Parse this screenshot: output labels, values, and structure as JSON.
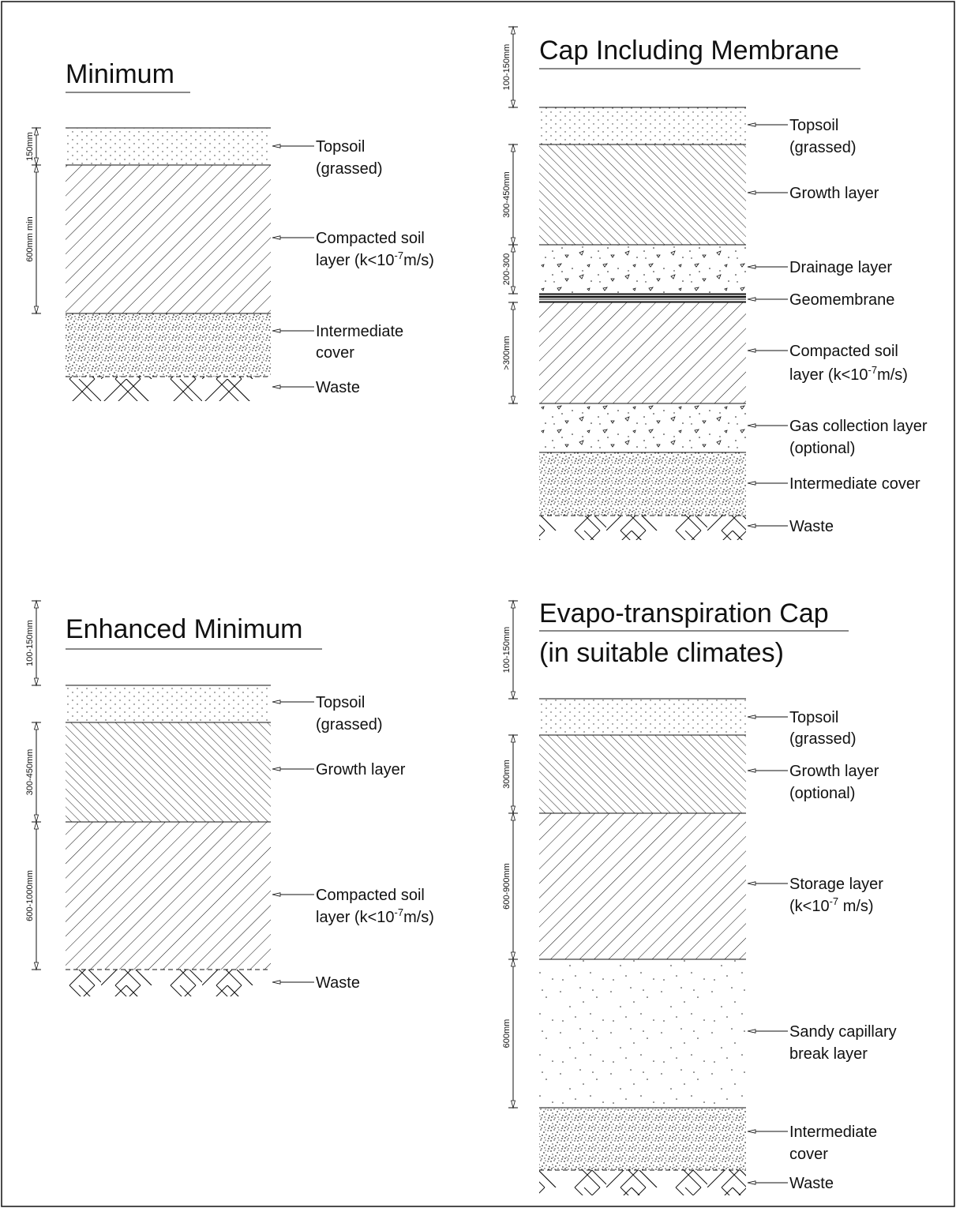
{
  "diagrams": [
    {
      "title": [
        "Minimum"
      ],
      "layers": [
        {
          "label": [
            "Topsoil",
            "(grassed)"
          ],
          "pattern": "dots-light",
          "dimension": "150mm"
        },
        {
          "label": [
            "Compacted soil",
            "layer (k<10-7m/s)"
          ],
          "pattern": "hatch-wide",
          "dimension": "600mm min"
        },
        {
          "label": [
            "Intermediate",
            "cover"
          ],
          "pattern": "stipple-dense"
        },
        {
          "label": [
            "Waste"
          ],
          "pattern": "crosshatch"
        }
      ]
    },
    {
      "title": [
        "Cap Including Membrane"
      ],
      "top_dimension": "100-150mm",
      "layers": [
        {
          "label": [
            "Topsoil",
            "(grassed)"
          ],
          "pattern": "dots-light"
        },
        {
          "label": [
            "Growth layer"
          ],
          "pattern": "hatch-fine",
          "dimension": "300-450mm"
        },
        {
          "label": [
            "Drainage layer"
          ],
          "pattern": "gravel",
          "dimension": "200-300"
        },
        {
          "label": [
            "Geomembrane"
          ],
          "pattern": "membrane"
        },
        {
          "label": [
            "Compacted soil",
            "layer (k<10-7m/s)"
          ],
          "pattern": "hatch-wide",
          "dimension": ">300mm"
        },
        {
          "label": [
            "Gas collection layer",
            "(optional)"
          ],
          "pattern": "gravel"
        },
        {
          "label": [
            "Intermediate cover"
          ],
          "pattern": "stipple-dense"
        },
        {
          "label": [
            "Waste"
          ],
          "pattern": "crosshatch"
        }
      ]
    },
    {
      "title": [
        "Enhanced Minimum"
      ],
      "top_dimension": "100-150mm",
      "layers": [
        {
          "label": [
            "Topsoil",
            "(grassed)"
          ],
          "pattern": "dots-light"
        },
        {
          "label": [
            "Growth layer"
          ],
          "pattern": "hatch-fine",
          "dimension": "300-450mm"
        },
        {
          "label": [
            "Compacted soil",
            "layer (k<10-7m/s)"
          ],
          "pattern": "hatch-wide",
          "dimension": "600-1000mm"
        },
        {
          "label": [
            "Waste"
          ],
          "pattern": "crosshatch"
        }
      ]
    },
    {
      "title": [
        "Evapo-transpiration Cap",
        "(in suitable climates)"
      ],
      "top_dimension": "100-150mm",
      "layers": [
        {
          "label": [
            "Topsoil",
            "(grassed)"
          ],
          "pattern": "dots-light"
        },
        {
          "label": [
            "Growth layer",
            "(optional)"
          ],
          "pattern": "hatch-fine",
          "dimension": "300mm"
        },
        {
          "label": [
            "Storage layer",
            "(k<10-7 m/s)"
          ],
          "pattern": "hatch-wide",
          "dimension": "600-900mm"
        },
        {
          "label": [
            "Sandy capillary",
            "break layer"
          ],
          "pattern": "sparse-dots",
          "dimension": "600mm"
        },
        {
          "label": [
            "Intermediate",
            "cover"
          ],
          "pattern": "stipple-dense"
        },
        {
          "label": [
            "Waste"
          ],
          "pattern": "crosshatch"
        }
      ]
    }
  ]
}
